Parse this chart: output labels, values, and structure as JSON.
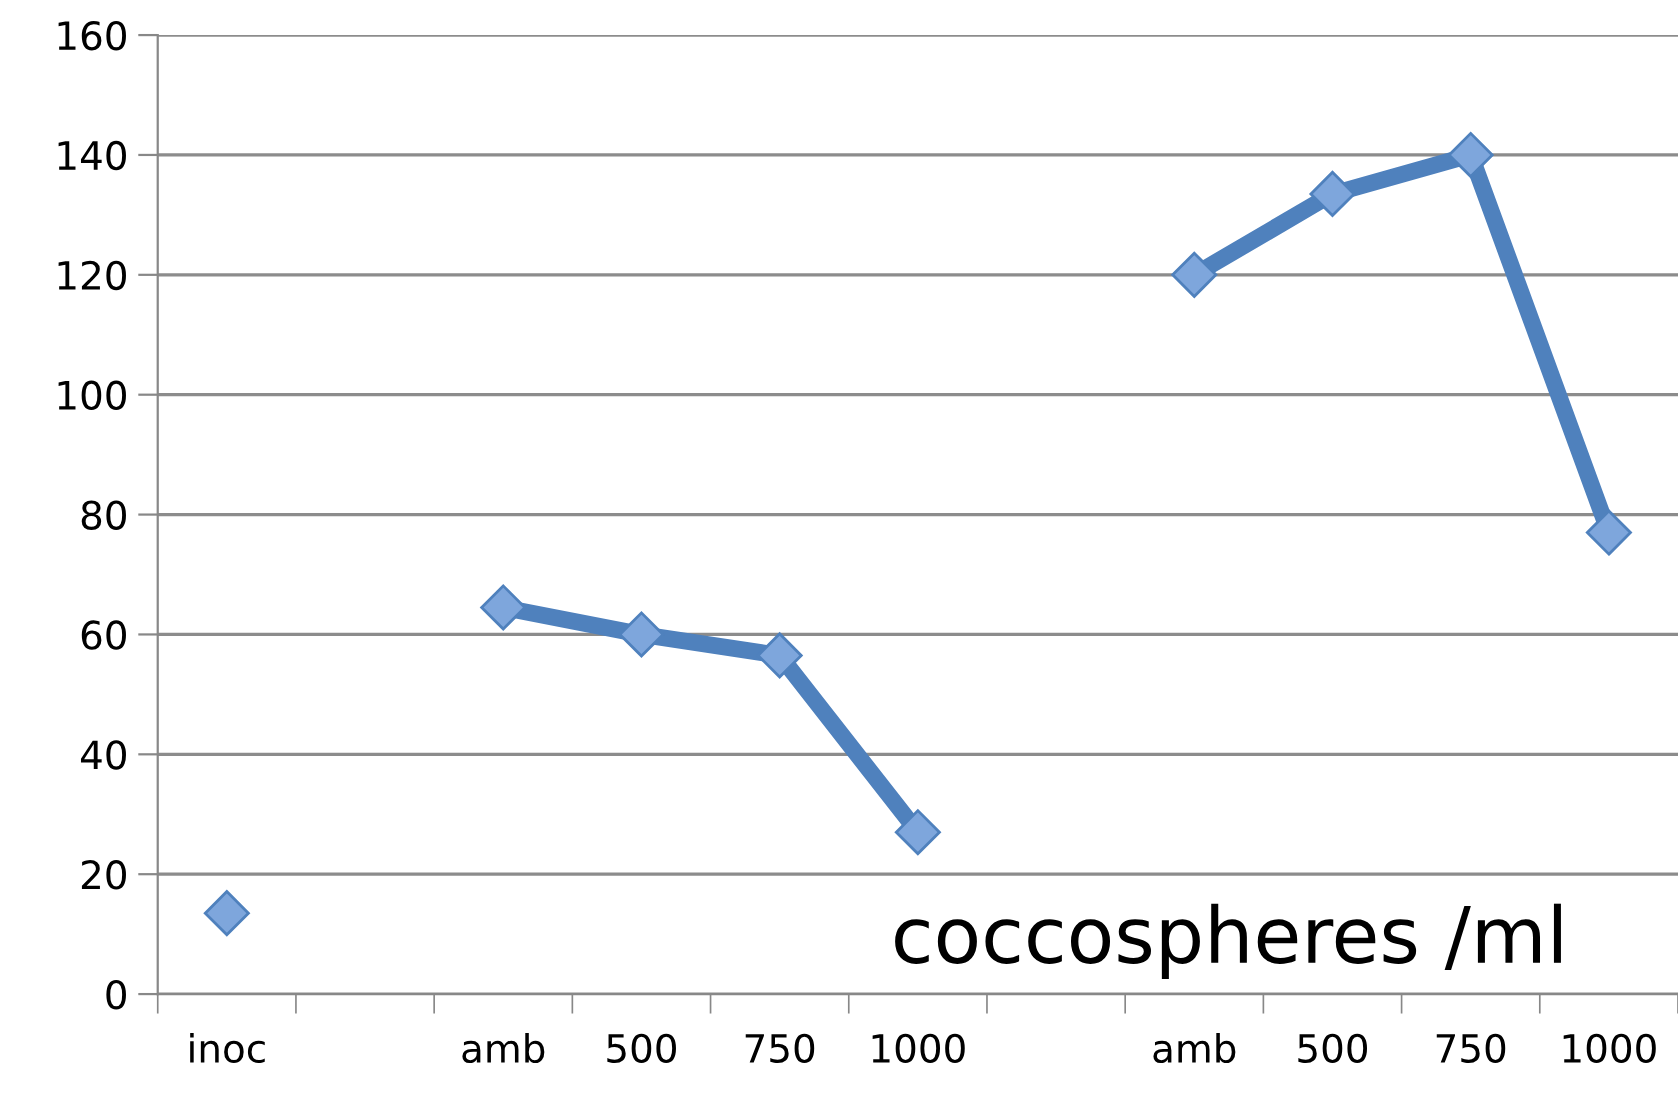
{
  "chart_data": {
    "type": "line",
    "categories": [
      "inoc",
      null,
      "amb",
      "500",
      "750",
      "1000",
      null,
      "amb",
      "500",
      "750",
      "1000"
    ],
    "series": [
      {
        "color": "#4f81bd",
        "values": [
          13.5,
          null,
          64.5,
          60,
          56.5,
          27,
          null,
          120,
          133.5,
          140,
          77
        ]
      }
    ],
    "ylim": [
      0,
      160
    ],
    "yticks": [
      0,
      20,
      40,
      60,
      80,
      100,
      120,
      140,
      160
    ],
    "grid": "y",
    "marker": "diamond",
    "line_style": "solid",
    "legend": false,
    "annotations": [
      "coccospheres /ml"
    ]
  }
}
